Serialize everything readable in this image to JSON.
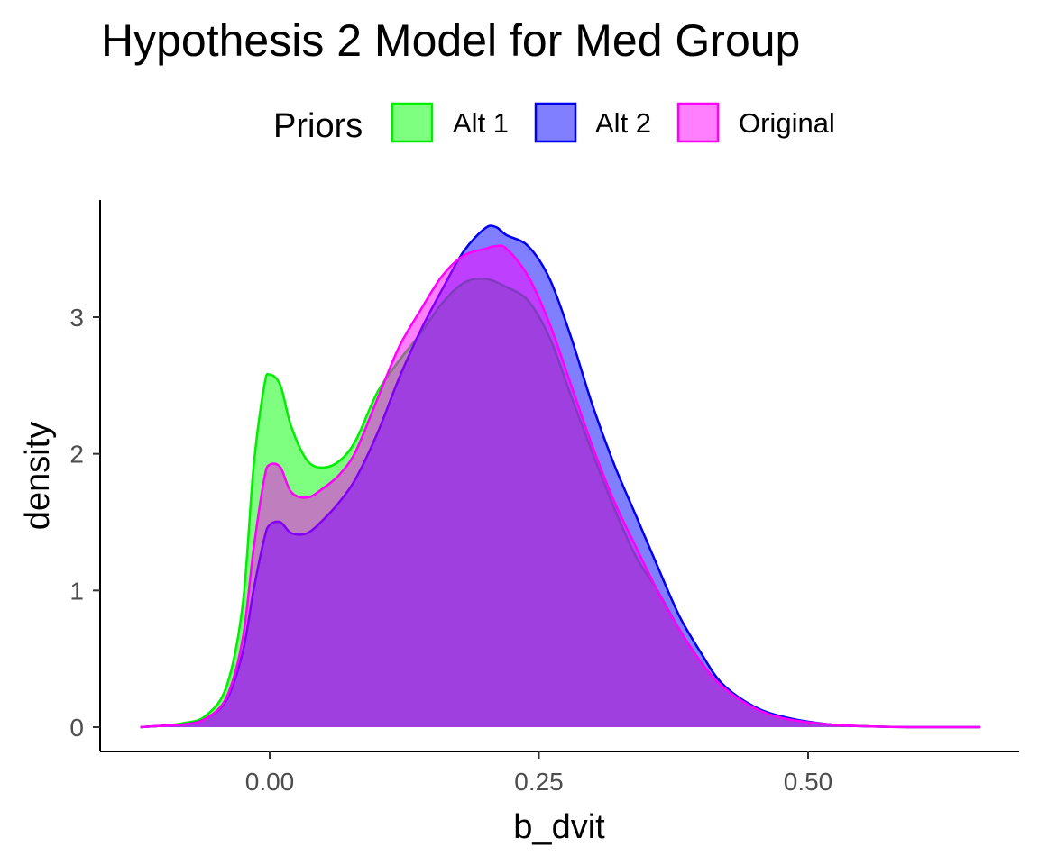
{
  "chart_data": {
    "type": "area",
    "title": "Hypothesis 2 Model for Med Group",
    "xlabel": "b_dvit",
    "ylabel": "density",
    "xlim": [
      -0.13,
      0.66
    ],
    "ylim": [
      0,
      3.65
    ],
    "x_ticks": [
      0.0,
      0.25,
      0.5
    ],
    "x_tick_labels": [
      "0.00",
      "0.25",
      "0.50"
    ],
    "y_ticks": [
      0,
      1,
      2,
      3
    ],
    "y_tick_labels": [
      "0",
      "1",
      "2",
      "3"
    ],
    "grid": false,
    "legend": {
      "title": "Priors",
      "placement": "top"
    },
    "series": [
      {
        "name": "Alt 1",
        "fill": "#00ff00",
        "stroke": "#00ee00",
        "x": [
          -0.12,
          -0.1,
          -0.08,
          -0.06,
          -0.04,
          -0.025,
          -0.015,
          -0.005,
          0.0,
          0.01,
          0.02,
          0.035,
          0.05,
          0.065,
          0.08,
          0.1,
          0.12,
          0.14,
          0.16,
          0.18,
          0.2,
          0.22,
          0.24,
          0.26,
          0.28,
          0.3,
          0.32,
          0.34,
          0.36,
          0.38,
          0.4,
          0.42,
          0.45,
          0.48,
          0.52,
          0.56,
          0.6,
          0.66
        ],
        "y": [
          0.0,
          0.01,
          0.03,
          0.08,
          0.3,
          0.9,
          1.9,
          2.5,
          2.58,
          2.5,
          2.2,
          1.95,
          1.9,
          1.95,
          2.1,
          2.45,
          2.68,
          2.88,
          3.1,
          3.25,
          3.28,
          3.22,
          3.12,
          2.85,
          2.42,
          2.0,
          1.6,
          1.25,
          1.0,
          0.72,
          0.48,
          0.3,
          0.14,
          0.06,
          0.02,
          0.005,
          0.0,
          0.0
        ]
      },
      {
        "name": "Alt 2",
        "fill": "#0000ff",
        "stroke": "#0000ee",
        "x": [
          -0.12,
          -0.1,
          -0.08,
          -0.06,
          -0.04,
          -0.025,
          -0.015,
          -0.005,
          0.0,
          0.01,
          0.02,
          0.035,
          0.05,
          0.065,
          0.08,
          0.1,
          0.12,
          0.14,
          0.16,
          0.18,
          0.2,
          0.21,
          0.22,
          0.24,
          0.26,
          0.28,
          0.3,
          0.32,
          0.34,
          0.36,
          0.38,
          0.4,
          0.42,
          0.45,
          0.48,
          0.52,
          0.56,
          0.6,
          0.66
        ],
        "y": [
          0.0,
          0.01,
          0.02,
          0.06,
          0.2,
          0.55,
          1.0,
          1.38,
          1.48,
          1.5,
          1.42,
          1.42,
          1.52,
          1.65,
          1.82,
          2.15,
          2.55,
          2.9,
          3.2,
          3.48,
          3.65,
          3.66,
          3.6,
          3.52,
          3.28,
          2.85,
          2.35,
          1.92,
          1.55,
          1.18,
          0.82,
          0.55,
          0.32,
          0.15,
          0.07,
          0.02,
          0.005,
          0.0,
          0.0
        ]
      },
      {
        "name": "Original",
        "fill": "#ff00ff",
        "stroke": "#ff00ff",
        "x": [
          -0.12,
          -0.1,
          -0.08,
          -0.06,
          -0.04,
          -0.025,
          -0.015,
          -0.005,
          0.0,
          0.01,
          0.02,
          0.035,
          0.05,
          0.065,
          0.08,
          0.1,
          0.12,
          0.14,
          0.16,
          0.18,
          0.2,
          0.21,
          0.22,
          0.24,
          0.26,
          0.28,
          0.3,
          0.32,
          0.34,
          0.36,
          0.38,
          0.4,
          0.42,
          0.45,
          0.48,
          0.52,
          0.56,
          0.6,
          0.66
        ],
        "y": [
          0.0,
          0.01,
          0.02,
          0.06,
          0.22,
          0.65,
          1.3,
          1.82,
          1.92,
          1.9,
          1.72,
          1.68,
          1.75,
          1.85,
          2.02,
          2.4,
          2.78,
          3.05,
          3.3,
          3.45,
          3.5,
          3.52,
          3.5,
          3.3,
          2.95,
          2.5,
          2.05,
          1.65,
          1.32,
          1.0,
          0.72,
          0.48,
          0.3,
          0.14,
          0.06,
          0.02,
          0.005,
          0.0,
          0.0
        ]
      }
    ]
  }
}
